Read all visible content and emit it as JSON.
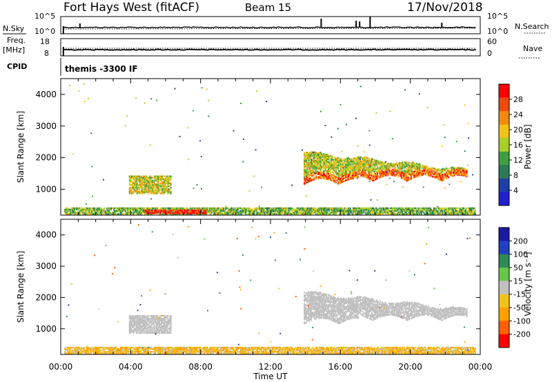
{
  "header": {
    "station": "Fort Hays West (fitACF)",
    "beam": "Beam 15",
    "date": "17/Nov/2018"
  },
  "nsky_panel": {
    "label": "N.Sky",
    "right_label": "N.Search",
    "left_ticks": [
      "10^5",
      "10^0"
    ],
    "right_ticks": [
      "10^5",
      "10^0"
    ]
  },
  "freq_panel": {
    "label_line1": "Freq.",
    "label_line2": "[MHz]",
    "right_label": "Nave",
    "left_ticks": [
      "18",
      "8"
    ],
    "right_ticks": [
      "60",
      "0"
    ]
  },
  "cpid_panel": {
    "label": "CPID",
    "value": "themis -3300 IF"
  },
  "chart_data": [
    {
      "type": "heatmap",
      "title": "",
      "ylabel": "Slant Range [km]",
      "ylim": [
        180,
        4500
      ],
      "y_ticks": [
        "4000",
        "3000",
        "2000",
        "1000"
      ],
      "colorbar": {
        "label": "Power [dB]",
        "ticks": [
          "28",
          "24",
          "20",
          "16",
          "12",
          "8",
          "4"
        ],
        "range": [
          0,
          32
        ]
      },
      "regions": [
        {
          "name": "ground scatter band",
          "t_start": 0.2,
          "t_end": 23.7,
          "range_start": 200,
          "range_end": 420,
          "power_db": 14
        },
        {
          "name": "strong near range",
          "t_start": 4.8,
          "t_end": 8.3,
          "range_start": 220,
          "range_end": 340,
          "power_db": 29
        },
        {
          "name": "evening patch",
          "t_start": 3.9,
          "t_end": 6.3,
          "range_start": 850,
          "range_end": 1400,
          "power_db": 18
        },
        {
          "name": "main ionospheric band",
          "t_start": 13.9,
          "t_end": 23.2,
          "range_start": 1100,
          "range_end": 2200,
          "power_db": 17
        }
      ]
    },
    {
      "type": "heatmap",
      "title": "",
      "ylabel": "Slant Range [km]",
      "xlabel": "Time UT",
      "ylim": [
        180,
        4500
      ],
      "y_ticks": [
        "4000",
        "3000",
        "2000",
        "1000"
      ],
      "x_ticks": [
        "00:00",
        "04:00",
        "08:00",
        "12:00",
        "16:00",
        "20:00",
        "00:00"
      ],
      "xlim": [
        0,
        24
      ],
      "colorbar": {
        "label": "Velocity [m s⁻¹]",
        "ticks": [
          "200",
          "100",
          "50",
          "15",
          "-15",
          "-50",
          "-100",
          "-200"
        ]
      },
      "regions": [
        {
          "name": "ground scatter band",
          "t_start": 0.2,
          "t_end": 23.7,
          "range_start": 200,
          "range_end": 420,
          "velocity": -40
        },
        {
          "name": "evening patch",
          "t_start": 3.9,
          "t_end": 6.3,
          "range_start": 850,
          "range_end": 1400,
          "velocity": 0
        },
        {
          "name": "main ionospheric band",
          "t_start": 13.9,
          "t_end": 23.2,
          "range_start": 1100,
          "range_end": 2200,
          "velocity": 0
        }
      ]
    }
  ],
  "colors": {
    "power_scale": [
      "#2020d0",
      "#1f3fa8",
      "#2c7a56",
      "#3f9f3f",
      "#a8cf2a",
      "#f2c21a",
      "#f08a12",
      "#ec4a12",
      "#ff0000"
    ],
    "velocity_scale": [
      "#ff0000",
      "#ff6000",
      "#ffa000",
      "#f2c21a",
      "#c0c0c0",
      "#66c64a",
      "#2e8b57",
      "#2040c0",
      "#1a1aa0"
    ],
    "ground_scatter": "#b8b8b8"
  }
}
